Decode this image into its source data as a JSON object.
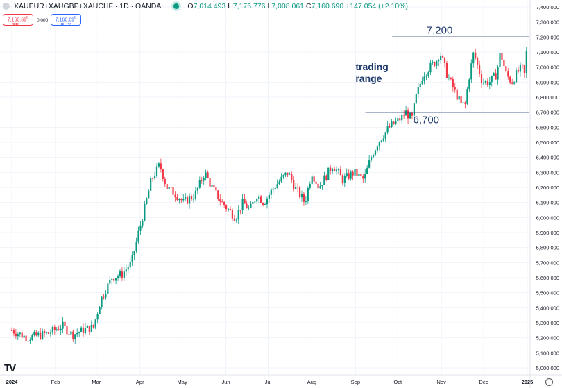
{
  "header": {
    "symbol": "XAUEUR+XAUGBP+XAUCHF · 1D · OANDA",
    "o_label": "O",
    "o": "7,014.493",
    "h_label": "H",
    "h": "7,176.776",
    "l_label": "L",
    "l": "7,008.061",
    "c_label": "C",
    "c": "7,160.690",
    "change": "+147.054 (+2.10%)"
  },
  "trade": {
    "sell_price": "7,160.69",
    "sell_sup": "0",
    "sell_label": "SELL",
    "spread": "0.000",
    "buy_price": "7,160.69",
    "buy_sup": "0",
    "buy_label": "BUY"
  },
  "colors": {
    "up": "#089981",
    "down": "#f23645",
    "annotation": "#1e3a6e",
    "grid": "#f0f3fa"
  },
  "chart_data": {
    "type": "candlestick",
    "title": "XAUEUR+XAUGBP+XAUCHF · 1D · OANDA",
    "ylim": [
      5000,
      7400
    ],
    "yticks": [
      "7,400.000",
      "7,300.000",
      "7,200.000",
      "7,100.000",
      "7,000.000",
      "6,900.000",
      "6,800.000",
      "6,700.000",
      "6,600.000",
      "6,500.000",
      "6,400.000",
      "6,300.000",
      "6,200.000",
      "6,100.000",
      "6,000.000",
      "5,900.000",
      "5,800.000",
      "5,700.000",
      "5,600.000",
      "5,500.000",
      "5,400.000",
      "5,300.000",
      "5,200.000",
      "5,100.000",
      "5,000.000"
    ],
    "xticks": [
      {
        "label": "2024",
        "day": 0,
        "bold": true
      },
      {
        "label": "Feb",
        "day": 31
      },
      {
        "label": "Mar",
        "day": 60
      },
      {
        "label": "Apr",
        "day": 91
      },
      {
        "label": "May",
        "day": 121
      },
      {
        "label": "Jun",
        "day": 152
      },
      {
        "label": "Jul",
        "day": 182
      },
      {
        "label": "Aug",
        "day": 213
      },
      {
        "label": "Sep",
        "day": 244
      },
      {
        "label": "Oct",
        "day": 274
      },
      {
        "label": "Nov",
        "day": 305
      },
      {
        "label": "Dec",
        "day": 335
      },
      {
        "label": "2025",
        "day": 366,
        "bold": true
      }
    ],
    "xlim_days": [
      0,
      366
    ],
    "close_path": [
      [
        0,
        5250
      ],
      [
        11,
        5200
      ],
      [
        26,
        5230
      ],
      [
        36,
        5280
      ],
      [
        43,
        5220
      ],
      [
        53,
        5260
      ],
      [
        58,
        5270
      ],
      [
        63,
        5450
      ],
      [
        71,
        5600
      ],
      [
        78,
        5620
      ],
      [
        85,
        5700
      ],
      [
        90,
        5900
      ],
      [
        94,
        6050
      ],
      [
        99,
        6250
      ],
      [
        105,
        6350
      ],
      [
        110,
        6200
      ],
      [
        117,
        6150
      ],
      [
        122,
        6100
      ],
      [
        130,
        6150
      ],
      [
        137,
        6300
      ],
      [
        142,
        6200
      ],
      [
        149,
        6100
      ],
      [
        154,
        6050
      ],
      [
        159,
        6000
      ],
      [
        164,
        6100
      ],
      [
        169,
        6050
      ],
      [
        174,
        6150
      ],
      [
        179,
        6100
      ],
      [
        186,
        6200
      ],
      [
        196,
        6300
      ],
      [
        201,
        6200
      ],
      [
        208,
        6100
      ],
      [
        213,
        6300
      ],
      [
        218,
        6200
      ],
      [
        228,
        6350
      ],
      [
        235,
        6250
      ],
      [
        243,
        6300
      ],
      [
        250,
        6250
      ],
      [
        255,
        6400
      ],
      [
        260,
        6500
      ],
      [
        268,
        6600
      ],
      [
        275,
        6650
      ],
      [
        280,
        6700
      ],
      [
        284,
        6650
      ],
      [
        287,
        6800
      ],
      [
        292,
        6950
      ],
      [
        297,
        7000
      ],
      [
        302,
        7050
      ],
      [
        304,
        7100
      ],
      [
        309,
        6950
      ],
      [
        314,
        6850
      ],
      [
        319,
        6750
      ],
      [
        322,
        6750
      ],
      [
        324,
        6900
      ],
      [
        328,
        7100
      ],
      [
        331,
        7000
      ],
      [
        334,
        6900
      ],
      [
        339,
        6900
      ],
      [
        344,
        6950
      ],
      [
        347,
        7100
      ],
      [
        351,
        6950
      ],
      [
        355,
        6900
      ],
      [
        358,
        6950
      ],
      [
        362,
        7000
      ],
      [
        364,
        6950
      ],
      [
        366,
        7160
      ]
    ],
    "annotations": [
      {
        "type": "hline",
        "value": 7200,
        "from_day": 270,
        "label": "7,200"
      },
      {
        "type": "hline",
        "value": 6700,
        "from_day": 251,
        "label": "6,700"
      },
      {
        "type": "text",
        "label": "trading range",
        "day": 244,
        "value": 6980
      }
    ]
  }
}
